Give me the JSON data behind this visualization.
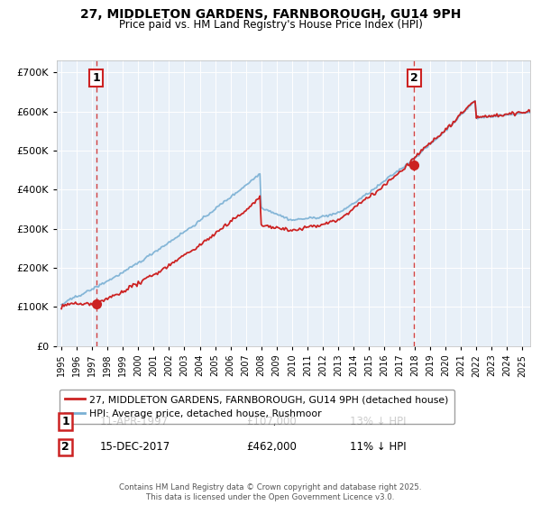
{
  "title_line1": "27, MIDDLETON GARDENS, FARNBOROUGH, GU14 9PH",
  "title_line2": "Price paid vs. HM Land Registry's House Price Index (HPI)",
  "legend_line1": "27, MIDDLETON GARDENS, FARNBOROUGH, GU14 9PH (detached house)",
  "legend_line2": "HPI: Average price, detached house, Rushmoor",
  "marker1_label": "1",
  "marker1_date": "11-APR-1997",
  "marker1_price": "£107,000",
  "marker1_note": "13% ↓ HPI",
  "marker2_label": "2",
  "marker2_date": "15-DEC-2017",
  "marker2_price": "£462,000",
  "marker2_note": "11% ↓ HPI",
  "footer": "Contains HM Land Registry data © Crown copyright and database right 2025.\nThis data is licensed under the Open Government Licence v3.0.",
  "ylim": [
    0,
    730000
  ],
  "yticks": [
    0,
    100000,
    200000,
    300000,
    400000,
    500000,
    600000,
    700000
  ],
  "ytick_labels": [
    "£0",
    "£100K",
    "£200K",
    "£300K",
    "£400K",
    "£500K",
    "£600K",
    "£700K"
  ],
  "plot_bg_color": "#e8f0f8",
  "red_line_color": "#cc2222",
  "blue_line_color": "#7ab0d4",
  "marker1_x": 1997.28,
  "marker1_y": 107000,
  "marker2_x": 2017.96,
  "marker2_y": 462000,
  "xmin": 1994.7,
  "xmax": 2025.5
}
